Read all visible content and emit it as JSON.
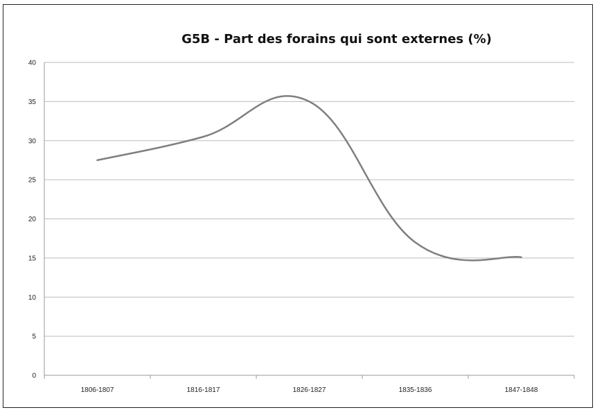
{
  "chart_data": {
    "type": "line",
    "title": "G5B - Part des forains qui sont externes (%)",
    "xlabel": "",
    "ylabel": "",
    "categories": [
      "1806-1807",
      "1816-1817",
      "1826-1827",
      "1835-1836",
      "1847-1848"
    ],
    "series": [
      {
        "values": [
          27.5,
          30.5,
          35.0,
          17.0,
          15.1
        ]
      }
    ],
    "ylim": [
      0,
      40
    ],
    "yticks": [
      0,
      5,
      10,
      15,
      20,
      25,
      30,
      35,
      40
    ],
    "grid": true,
    "smooth": true,
    "legend": "none",
    "colors": {
      "line": "#7f7f7f",
      "grid": "#bdbdbd",
      "axis": "#9a9a9a",
      "frame": "#222222"
    }
  }
}
